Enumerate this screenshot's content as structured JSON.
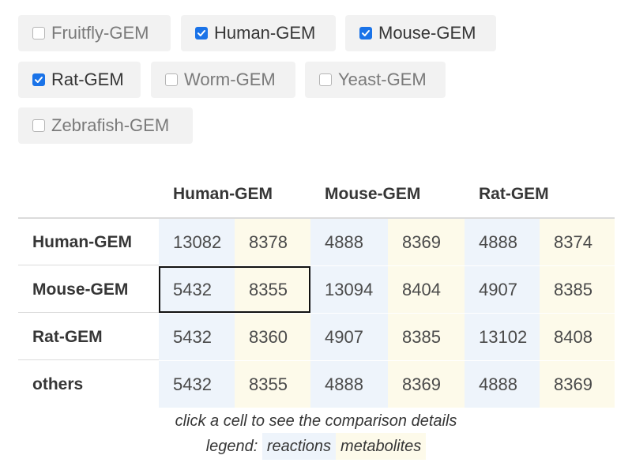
{
  "models": [
    {
      "label": "Fruitfly-GEM",
      "checked": false
    },
    {
      "label": "Human-GEM",
      "checked": true
    },
    {
      "label": "Mouse-GEM",
      "checked": true
    },
    {
      "label": "Rat-GEM",
      "checked": true
    },
    {
      "label": "Worm-GEM",
      "checked": false
    },
    {
      "label": "Yeast-GEM",
      "checked": false
    },
    {
      "label": "Zebrafish-GEM",
      "checked": false
    }
  ],
  "table": {
    "columns": [
      "Human-GEM",
      "Mouse-GEM",
      "Rat-GEM"
    ],
    "rows": [
      {
        "label": "Human-GEM",
        "values": [
          "13082",
          "8378",
          "4888",
          "8369",
          "4888",
          "8374"
        ]
      },
      {
        "label": "Mouse-GEM",
        "values": [
          "5432",
          "8355",
          "13094",
          "8404",
          "4907",
          "8385"
        ]
      },
      {
        "label": "Rat-GEM",
        "values": [
          "5432",
          "8360",
          "4907",
          "8385",
          "13102",
          "8408"
        ]
      },
      {
        "label": "others",
        "values": [
          "5432",
          "8355",
          "4888",
          "8369",
          "4888",
          "8369"
        ]
      }
    ],
    "selected": {
      "row": 1,
      "column": 0
    }
  },
  "hint": "click a cell to see the comparison details",
  "legend": {
    "label": "legend:",
    "reactions": "reactions",
    "metabolites": "metabolites"
  },
  "colors": {
    "reactions_bg": "#eef4fb",
    "metabolites_bg": "#fdfaea",
    "checkbox_checked": "#1a73e8",
    "chip_bg": "#f2f2f2"
  }
}
